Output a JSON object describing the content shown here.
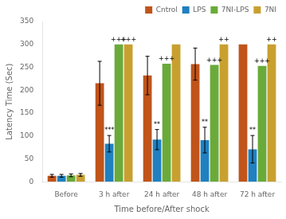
{
  "chart_data": {
    "type": "bar",
    "categories": [
      "Before",
      "3 h after",
      "24 h after",
      "48 h after",
      "72 h after"
    ],
    "series": [
      {
        "name": "Cntrol",
        "color": "#c0541a",
        "values": [
          13,
          215,
          232,
          257,
          300
        ],
        "errors": [
          3,
          48,
          42,
          35,
          0
        ]
      },
      {
        "name": "LPS",
        "color": "#2080c0",
        "values": [
          13,
          83,
          92,
          91,
          71
        ],
        "errors": [
          3,
          18,
          22,
          28,
          30
        ],
        "annotations": [
          null,
          "***",
          "**",
          "**",
          "**"
        ]
      },
      {
        "name": "7NI-LPS",
        "color": "#6aaa3a",
        "values": [
          14,
          300,
          258,
          255,
          253
        ],
        "errors": [
          3,
          0,
          0,
          0,
          0
        ],
        "annotations": [
          null,
          "+++",
          "+++",
          "+++",
          "+++"
        ]
      },
      {
        "name": "7NI",
        "color": "#c8a030",
        "values": [
          15,
          300,
          300,
          300,
          300
        ],
        "errors": [
          3,
          0,
          0,
          0,
          0
        ],
        "annotations": [
          null,
          "+++",
          null,
          "++",
          "++"
        ]
      }
    ],
    "xlabel": "Time before/After shock",
    "ylabel": "Latency Time (Sec)",
    "ylim": [
      0,
      350
    ],
    "yticks": [
      0,
      50,
      100,
      150,
      200,
      250,
      300,
      350
    ],
    "grid": false,
    "legend": "upper right"
  }
}
